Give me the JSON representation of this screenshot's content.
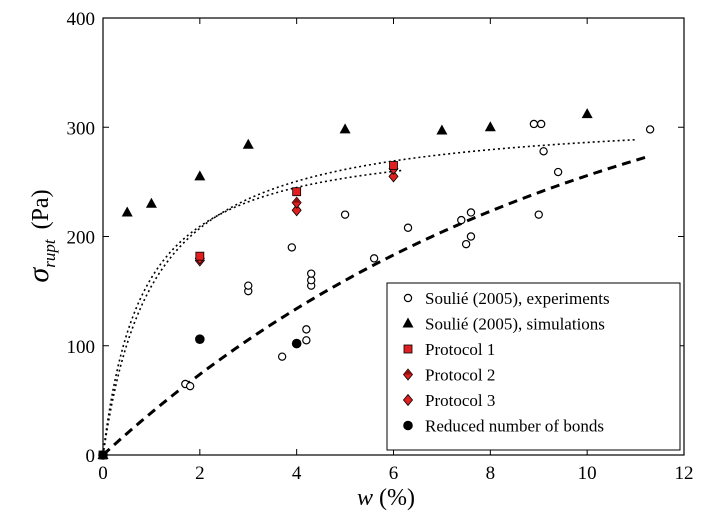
{
  "chart_data": {
    "type": "scatter",
    "xlabel": {
      "symbol": "w",
      "unit": "(%)"
    },
    "ylabel": {
      "symbol": "σ",
      "subscript": "rupt",
      "unit": "(Pa)"
    },
    "xlim": [
      0,
      12
    ],
    "ylim": [
      0,
      400
    ],
    "x_ticks": [
      "0",
      "2",
      "4",
      "6",
      "8",
      "10",
      "12"
    ],
    "y_ticks": [
      "0",
      "100",
      "200",
      "300",
      "400"
    ],
    "grid": false,
    "legend_position": "bottom-right",
    "series": [
      {
        "name": "Soulié (2005), experiments",
        "marker": "open-circle",
        "color": "#000000",
        "points": [
          [
            0,
            0
          ],
          [
            1.7,
            65
          ],
          [
            1.8,
            63
          ],
          [
            3.0,
            150
          ],
          [
            3.0,
            155
          ],
          [
            3.7,
            90
          ],
          [
            3.9,
            190
          ],
          [
            4.2,
            105
          ],
          [
            4.2,
            115
          ],
          [
            4.3,
            155
          ],
          [
            4.3,
            160
          ],
          [
            4.3,
            166
          ],
          [
            5.0,
            220
          ],
          [
            5.6,
            180
          ],
          [
            6.3,
            208
          ],
          [
            7.4,
            215
          ],
          [
            7.5,
            193
          ],
          [
            7.6,
            200
          ],
          [
            7.6,
            222
          ],
          [
            8.9,
            303
          ],
          [
            9.0,
            220
          ],
          [
            9.05,
            303
          ],
          [
            9.1,
            278
          ],
          [
            9.4,
            259
          ],
          [
            11.3,
            298
          ]
        ]
      },
      {
        "name": "Soulié (2005), simulations",
        "marker": "triangle",
        "color": "#000000",
        "points": [
          [
            0,
            0
          ],
          [
            0.5,
            222
          ],
          [
            1.0,
            230
          ],
          [
            2.0,
            255
          ],
          [
            3.0,
            284
          ],
          [
            5.0,
            298
          ],
          [
            7.0,
            297
          ],
          [
            8.0,
            300
          ],
          [
            10.0,
            312
          ]
        ]
      },
      {
        "name": "Protocol 1",
        "marker": "square",
        "color": "#e02020",
        "points": [
          [
            0,
            0
          ],
          [
            2.0,
            182
          ],
          [
            4.0,
            241
          ],
          [
            6.0,
            265
          ]
        ]
      },
      {
        "name": "Protocol 2",
        "marker": "half-diamond",
        "color": "#e02020",
        "points": [
          [
            2.0,
            180
          ],
          [
            4.0,
            231
          ],
          [
            6.0,
            262
          ]
        ]
      },
      {
        "name": "Protocol 3",
        "marker": "diamond",
        "color": "#e02020",
        "points": [
          [
            2.0,
            178
          ],
          [
            4.0,
            224
          ],
          [
            6.0,
            255
          ]
        ]
      },
      {
        "name": "Reduced number of bonds",
        "marker": "filled-circle",
        "color": "#000000",
        "points": [
          [
            2.0,
            106
          ],
          [
            4.0,
            102
          ]
        ]
      }
    ],
    "fit_curves": [
      {
        "style": "dotted",
        "shape": "saturating",
        "plateau": 316,
        "k": 0.29,
        "x_end": 11.0
      },
      {
        "style": "dotted",
        "shape": "saturating",
        "plateau": 295,
        "k": 0.37,
        "x_end": 6.2
      },
      {
        "style": "dashed",
        "shape": "saturating",
        "plateau": 400,
        "k": 0.102,
        "x_end": 11.3
      }
    ]
  }
}
